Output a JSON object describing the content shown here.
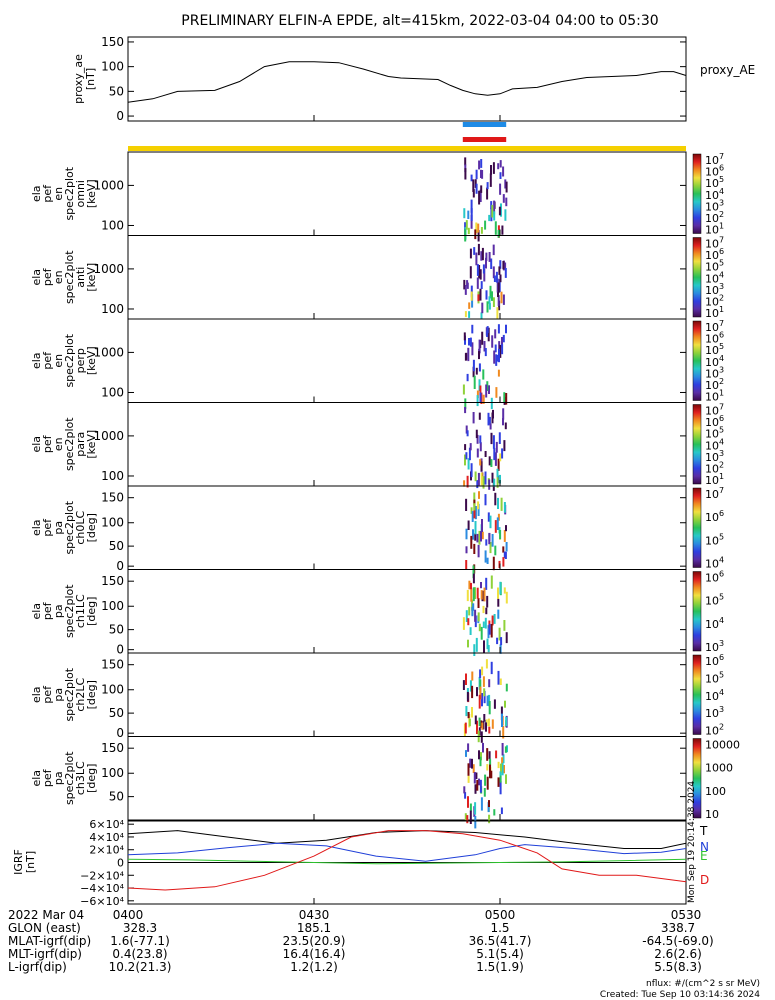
{
  "title": "PRELIMINARY ELFIN-A EPDE, alt=415km, 2022-03-04 04:00 to 05:30",
  "chart_data": {
    "type": "multi-panel",
    "x_axis": {
      "range": [
        "04:00",
        "05:30"
      ],
      "ticks": [
        "0400",
        "0430",
        "0500",
        "0530"
      ],
      "tick_minutes": [
        0,
        30,
        60,
        90
      ],
      "date_label": "2022 Mar 04"
    },
    "proxy_ae": {
      "ylabel": [
        "proxy_ae",
        "[nT]"
      ],
      "legend": "proxy_AE",
      "ylim": [
        -10,
        160
      ],
      "yticks": [
        0,
        50,
        100,
        150
      ],
      "series": {
        "minutes": [
          0,
          4,
          8,
          14,
          18,
          22,
          26,
          30,
          34,
          38,
          42,
          44,
          48,
          50,
          52,
          54,
          56,
          58,
          60,
          62,
          66,
          70,
          74,
          78,
          82,
          86,
          88,
          90
        ],
        "values": [
          28,
          35,
          50,
          52,
          70,
          100,
          110,
          110,
          108,
          95,
          80,
          77,
          75,
          74,
          62,
          52,
          45,
          42,
          45,
          55,
          58,
          70,
          78,
          80,
          82,
          90,
          90,
          82
        ]
      }
    },
    "bars": [
      {
        "color": "#1e8be6",
        "start_min": 54,
        "end_min": 61
      },
      {
        "color": "#e01818",
        "start_min": 54,
        "end_min": 61
      }
    ],
    "yellow_bar": true,
    "spectrogram_panels": [
      {
        "ylabel": [
          "ela",
          "pef",
          "en",
          "spec2plot",
          "omni",
          "[keV]"
        ],
        "ytick_labels": [
          "1000",
          "100"
        ],
        "ytick_fracs": [
          0.4,
          0.88
        ],
        "cb_ticks": [
          "10",
          "10",
          "10",
          "10",
          "10",
          "10",
          "10"
        ],
        "cb_exps": [
          "7",
          "6",
          "5",
          "4",
          "3",
          "2",
          "1"
        ],
        "cb_label": "nflux"
      },
      {
        "ylabel": [
          "ela",
          "pef",
          "en",
          "spec2plot",
          "anti",
          "[keV]"
        ],
        "ytick_labels": [
          "1000",
          "100"
        ],
        "ytick_fracs": [
          0.4,
          0.88
        ],
        "cb_ticks": [
          "10",
          "10",
          "10",
          "10",
          "10",
          "10",
          "10"
        ],
        "cb_exps": [
          "7",
          "6",
          "5",
          "4",
          "3",
          "2",
          "1"
        ],
        "cb_label": "nflux"
      },
      {
        "ylabel": [
          "ela",
          "pef",
          "en",
          "spec2plot",
          "perp",
          "[keV]"
        ],
        "ytick_labels": [
          "1000",
          "100"
        ],
        "ytick_fracs": [
          0.4,
          0.88
        ],
        "cb_ticks": [
          "10",
          "10",
          "10",
          "10",
          "10",
          "10",
          "10"
        ],
        "cb_exps": [
          "7",
          "6",
          "5",
          "4",
          "3",
          "2",
          "1"
        ],
        "cb_label": "nflux"
      },
      {
        "ylabel": [
          "ela",
          "pef",
          "en",
          "spec2plot",
          "para",
          "[keV]"
        ],
        "ytick_labels": [
          "1000",
          "100"
        ],
        "ytick_fracs": [
          0.4,
          0.88
        ],
        "cb_ticks": [
          "10",
          "10",
          "10",
          "10",
          "10",
          "10",
          "10"
        ],
        "cb_exps": [
          "7",
          "6",
          "5",
          "4",
          "3",
          "2",
          "1"
        ],
        "cb_label": "nflux"
      },
      {
        "ylabel": [
          "ela",
          "pef",
          "pa",
          "spec2plot",
          "ch0LC",
          "[deg]"
        ],
        "ytick_labels": [
          "150",
          "100",
          "50",
          "0"
        ],
        "ytick_fracs": [
          0.14,
          0.44,
          0.72,
          0.96
        ],
        "cb_ticks": [
          "10",
          "10",
          "10",
          "10"
        ],
        "cb_exps": [
          "7",
          "6",
          "5",
          "4"
        ],
        "cb_label": "nflux"
      },
      {
        "ylabel": [
          "ela",
          "pef",
          "pa",
          "spec2plot",
          "ch1LC",
          "[deg]"
        ],
        "ytick_labels": [
          "150",
          "100",
          "50",
          "0"
        ],
        "ytick_fracs": [
          0.14,
          0.44,
          0.72,
          0.96
        ],
        "cb_ticks": [
          "10",
          "10",
          "10",
          "10"
        ],
        "cb_exps": [
          "6",
          "5",
          "4",
          "3"
        ],
        "cb_label": "nflux"
      },
      {
        "ylabel": [
          "ela",
          "pef",
          "pa",
          "spec2plot",
          "ch2LC",
          "[deg]"
        ],
        "ytick_labels": [
          "150",
          "100",
          "50",
          "0"
        ],
        "ytick_fracs": [
          0.14,
          0.44,
          0.72,
          0.96
        ],
        "cb_ticks": [
          "10",
          "10",
          "10",
          "10",
          "10"
        ],
        "cb_exps": [
          "6",
          "5",
          "4",
          "3",
          "2"
        ],
        "cb_label": "nflux"
      },
      {
        "ylabel": [
          "ela",
          "pef",
          "pa",
          "spec2plot",
          "ch3LC",
          "[deg]"
        ],
        "ytick_labels": [
          "150",
          "100",
          "50"
        ],
        "ytick_fracs": [
          0.14,
          0.44,
          0.72
        ],
        "cb_ticks": [
          "10000",
          "1000",
          "100",
          "10"
        ],
        "cb_exps": [
          "",
          "",
          "",
          ""
        ],
        "cb_label": "nflux"
      }
    ],
    "igrf": {
      "ylabel": [
        "IGRF",
        "[nT]"
      ],
      "ylim": [
        -65000,
        65000
      ],
      "ytick_labels": [
        "6×10⁴",
        "4×10⁴",
        "2×10⁴",
        "0",
        "−2×10⁴",
        "−4×10⁴",
        "−6×10⁴"
      ],
      "ytick_values": [
        60000,
        40000,
        20000,
        0,
        -20000,
        -40000,
        -60000
      ],
      "series": [
        {
          "name": "T",
          "color": "#000000",
          "minutes": [
            0,
            8,
            16,
            24,
            32,
            40,
            48,
            56,
            64,
            72,
            80,
            86,
            90
          ],
          "values": [
            45000,
            50000,
            40000,
            30000,
            35000,
            47000,
            50000,
            47000,
            40000,
            30000,
            22000,
            22000,
            30000
          ]
        },
        {
          "name": "N",
          "color": "#1f3fd8",
          "minutes": [
            0,
            8,
            16,
            24,
            32,
            40,
            48,
            56,
            60,
            64,
            72,
            80,
            86,
            90
          ],
          "values": [
            12000,
            15000,
            23000,
            30000,
            26000,
            10000,
            2000,
            12000,
            22000,
            28000,
            22000,
            14000,
            16000,
            22000
          ]
        },
        {
          "name": "E",
          "color": "#2fc42f",
          "minutes": [
            0,
            10,
            20,
            30,
            40,
            50,
            60,
            70,
            80,
            90
          ],
          "values": [
            5000,
            4000,
            2000,
            0,
            -2000,
            -1000,
            0,
            1000,
            3000,
            5000
          ]
        },
        {
          "name": "D",
          "color": "#e01818",
          "minutes": [
            0,
            6,
            14,
            22,
            30,
            36,
            42,
            48,
            54,
            60,
            66,
            70,
            76,
            82,
            86,
            90
          ],
          "values": [
            -40000,
            -43000,
            -38000,
            -20000,
            10000,
            40000,
            50000,
            50000,
            45000,
            35000,
            15000,
            -10000,
            -20000,
            -20000,
            -25000,
            -30000
          ]
        }
      ]
    },
    "ephemeris": {
      "rows": [
        {
          "label": "GLON (east)",
          "values": [
            "328.3",
            "185.1",
            "1.5",
            "338.7"
          ]
        },
        {
          "label": "MLAT-igrf(dip)",
          "values": [
            "1.6(-77.1)",
            "23.5(20.9)",
            "36.5(41.7)",
            "-64.5(-69.0)"
          ]
        },
        {
          "label": "MLT-igrf(dip)",
          "values": [
            "0.4(23.8)",
            "16.4(16.4)",
            "5.1(5.4)",
            "2.6(2.6)"
          ]
        },
        {
          "label": "L-igrf(dip)",
          "values": [
            "10.2(21.3)",
            "1.2(1.2)",
            "1.5(1.9)",
            "5.5(8.3)"
          ]
        }
      ]
    }
  },
  "footer": {
    "units": "nflux: #/(cm^2 s sr MeV)",
    "created": "Created: Tue Sep 10 03:14:36 2024",
    "stamp": "Mon Sep 19 20:14:38 2024"
  }
}
